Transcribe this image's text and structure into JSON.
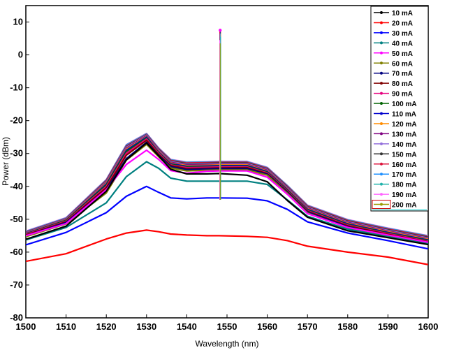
{
  "chart_data": {
    "type": "line",
    "xlabel": "Wavelength (nm)",
    "ylabel": "Power (dBm)",
    "xlim": [
      1500,
      1600
    ],
    "ylim": [
      -80,
      15
    ],
    "x_ticks": [
      "1500",
      "1510",
      "1520",
      "1530",
      "1540",
      "1550",
      "1560",
      "1570",
      "1580",
      "1590",
      "1600"
    ],
    "y_ticks": [
      "10",
      "0",
      "-10",
      "-20",
      "-30",
      "-40",
      "-50",
      "-60",
      "-70",
      "-80"
    ],
    "grid": false,
    "legend_position": "top-right",
    "x": [
      1500,
      1510,
      1520,
      1525,
      1530,
      1533,
      1536,
      1540,
      1545,
      1548,
      1555,
      1560,
      1565,
      1570,
      1580,
      1590,
      1600
    ],
    "spike": {
      "x": 1548.3,
      "peak": 7.5
    },
    "series": [
      {
        "name": "10 mA",
        "color": "#000000",
        "values": [
          -56.1,
          -52.1,
          -41.5,
          -31.9,
          -26.8,
          -30.7,
          -34.8,
          -36.2,
          -36.2,
          -36.1,
          -36.6,
          -38.6,
          -44.3,
          -49.4,
          -53.5,
          -55.6,
          -57.7
        ]
      },
      {
        "name": "20 mA",
        "color": "#ff0000",
        "values": [
          -62.8,
          -60.5,
          -56.0,
          -54.2,
          -53.3,
          -53.8,
          -54.5,
          -54.8,
          -55.0,
          -55.0,
          -55.2,
          -55.5,
          -56.5,
          -58.2,
          -60.0,
          -61.5,
          -63.8
        ]
      },
      {
        "name": "30 mA",
        "color": "#0000ff",
        "values": [
          -57.8,
          -54.0,
          -48.0,
          -43.0,
          -40.0,
          -41.8,
          -43.5,
          -43.8,
          -43.5,
          -43.5,
          -43.6,
          -44.4,
          -47.0,
          -50.8,
          -54.2,
          -56.5,
          -59.0
        ]
      },
      {
        "name": "40 mA",
        "color": "#008080",
        "values": [
          -56.3,
          -52.5,
          -45.0,
          -37.0,
          -32.5,
          -34.5,
          -37.5,
          -38.4,
          -38.4,
          -38.4,
          -38.4,
          -39.4,
          -44.1,
          -49.1,
          -53.0,
          -55.3,
          -57.5
        ]
      },
      {
        "name": "50 mA",
        "color": "#ff00ff",
        "values": [
          -55.0,
          -51.3,
          -41.0,
          -33.3,
          -29.0,
          -31.8,
          -35.2,
          -36.0,
          -35.4,
          -35.3,
          -35.3,
          -37.2,
          -42.4,
          -48.3,
          -52.5,
          -54.8,
          -57.0
        ]
      },
      {
        "name": "60 mA",
        "color": "#808000",
        "values": [
          -55.3,
          -51.4,
          -42.0,
          -32.0,
          -27.2,
          -31.0,
          -34.4,
          -35.3,
          -35.1,
          -35.0,
          -35.0,
          -36.6,
          -42.1,
          -48.1,
          -52.6,
          -55.2,
          -57.5
        ]
      },
      {
        "name": "70 mA",
        "color": "#000080",
        "values": [
          -55.0,
          -51.0,
          -41.0,
          -31.5,
          -26.6,
          -30.6,
          -34.0,
          -34.9,
          -34.7,
          -34.6,
          -34.6,
          -36.3,
          -41.8,
          -47.8,
          -52.3,
          -54.9,
          -57.2
        ]
      },
      {
        "name": "80 mA",
        "color": "#800000",
        "values": [
          -54.8,
          -50.8,
          -40.4,
          -30.5,
          -26.0,
          -30.3,
          -33.7,
          -34.6,
          -34.5,
          -34.4,
          -34.3,
          -36.1,
          -41.6,
          -47.6,
          -52.0,
          -54.6,
          -56.9
        ]
      },
      {
        "name": "90 mA",
        "color": "#e6007e",
        "values": [
          -54.6,
          -50.6,
          -40.0,
          -29.9,
          -25.6,
          -30.0,
          -33.5,
          -34.3,
          -34.2,
          -34.1,
          -34.1,
          -35.9,
          -41.4,
          -47.4,
          -51.8,
          -54.4,
          -56.7
        ]
      },
      {
        "name": "100 mA",
        "color": "#006400",
        "values": [
          -54.5,
          -50.4,
          -39.6,
          -29.4,
          -25.3,
          -29.8,
          -33.3,
          -34.1,
          -34.0,
          -33.9,
          -33.9,
          -35.7,
          -41.2,
          -47.2,
          -51.6,
          -54.2,
          -56.5
        ]
      },
      {
        "name": "110 mA",
        "color": "#0000cd",
        "values": [
          -54.4,
          -50.3,
          -39.3,
          -29.0,
          -25.0,
          -29.6,
          -33.1,
          -33.9,
          -33.8,
          -33.7,
          -33.7,
          -35.5,
          -41.0,
          -47.0,
          -51.4,
          -54.0,
          -56.3
        ]
      },
      {
        "name": "120 mA",
        "color": "#ff8c00",
        "values": [
          -54.3,
          -50.2,
          -39.0,
          -28.7,
          -24.8,
          -29.4,
          -32.9,
          -33.7,
          -33.6,
          -33.5,
          -33.5,
          -35.3,
          -40.8,
          -46.8,
          -51.2,
          -53.8,
          -56.1
        ]
      },
      {
        "name": "130 mA",
        "color": "#800080",
        "values": [
          -54.2,
          -50.1,
          -38.8,
          -28.4,
          -24.6,
          -29.2,
          -32.7,
          -33.5,
          -33.4,
          -33.3,
          -33.3,
          -35.1,
          -40.6,
          -46.6,
          -51.0,
          -53.6,
          -55.9
        ]
      },
      {
        "name": "140 mA",
        "color": "#9370db",
        "values": [
          -54.1,
          -50.0,
          -38.6,
          -28.1,
          -24.4,
          -29.0,
          -32.5,
          -33.3,
          -33.2,
          -33.1,
          -33.1,
          -34.9,
          -40.4,
          -46.4,
          -50.8,
          -53.4,
          -55.7
        ]
      },
      {
        "name": "150 mA",
        "color": "#333333",
        "values": [
          -54.0,
          -49.9,
          -38.4,
          -27.9,
          -24.3,
          -28.8,
          -32.3,
          -33.1,
          -33.0,
          -32.9,
          -32.9,
          -34.7,
          -40.2,
          -46.2,
          -50.6,
          -53.2,
          -55.5
        ]
      },
      {
        "name": "160 mA",
        "color": "#dc143c",
        "values": [
          -53.9,
          -49.8,
          -38.2,
          -27.7,
          -24.2,
          -28.6,
          -32.1,
          -32.9,
          -32.8,
          -32.7,
          -32.7,
          -34.5,
          -40.0,
          -46.0,
          -50.4,
          -53.0,
          -55.3
        ]
      },
      {
        "name": "170 mA",
        "color": "#1e90ff",
        "values": [
          -53.8,
          -49.7,
          -38.1,
          -27.5,
          -24.1,
          -28.5,
          -32.0,
          -32.8,
          -32.7,
          -32.6,
          -32.6,
          -34.4,
          -39.9,
          -45.9,
          -50.3,
          -52.9,
          -55.2
        ]
      },
      {
        "name": "180 mA",
        "color": "#20b2aa",
        "values": [
          -53.7,
          -49.6,
          -38.0,
          -27.4,
          -24.0,
          -28.4,
          -31.9,
          -32.7,
          -32.6,
          -32.5,
          -32.5,
          -34.3,
          -39.8,
          -45.8,
          -50.2,
          -52.8,
          -55.1
        ]
      },
      {
        "name": "190 mA",
        "color": "#ff66ff",
        "values": [
          -53.6,
          -49.5,
          -37.9,
          -27.3,
          -23.9,
          -28.3,
          -31.8,
          -32.6,
          -32.5,
          -32.4,
          -32.4,
          -34.2,
          -39.7,
          -45.7,
          -50.1,
          -52.7,
          -55.0
        ]
      },
      {
        "name": "200 mA",
        "color": "#9a9a00",
        "values": [
          -54.8,
          -50.8,
          -40.0,
          -30.0,
          -25.7,
          -29.8,
          -33.2,
          -33.9,
          -33.6,
          -33.4,
          -33.4,
          -35.3,
          -41.0,
          -47.2,
          -51.6,
          -54.2,
          -56.5
        ]
      }
    ]
  }
}
